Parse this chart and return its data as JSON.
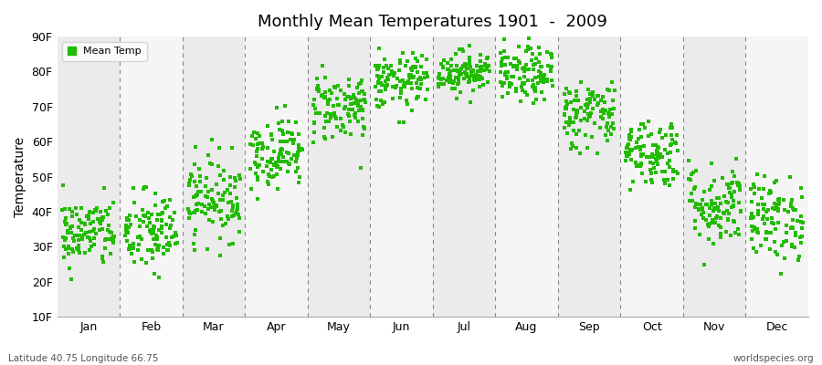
{
  "title": "Monthly Mean Temperatures 1901  -  2009",
  "ylabel": "Temperature",
  "dot_color": "#22bb00",
  "background_color": "#ffffff",
  "band_color_odd": "#ebebeb",
  "band_color_even": "#f5f5f5",
  "ytick_labels": [
    "10F",
    "20F",
    "30F",
    "40F",
    "50F",
    "60F",
    "70F",
    "80F",
    "90F"
  ],
  "ytick_values": [
    10,
    20,
    30,
    40,
    50,
    60,
    70,
    80,
    90
  ],
  "ylim": [
    10,
    90
  ],
  "month_names": [
    "Jan",
    "Feb",
    "Mar",
    "Apr",
    "May",
    "Jun",
    "Jul",
    "Aug",
    "Sep",
    "Oct",
    "Nov",
    "Dec"
  ],
  "footnote_left": "Latitude 40.75 Longitude 66.75",
  "footnote_right": "worldspecies.org",
  "legend_label": "Mean Temp",
  "mean_temps": [
    34,
    34,
    44,
    57,
    70,
    77,
    80,
    79,
    68,
    57,
    42,
    38
  ],
  "temp_spreads": [
    5,
    6,
    6,
    5,
    5,
    4,
    3,
    4,
    5,
    5,
    6,
    6
  ],
  "n_years": 109
}
